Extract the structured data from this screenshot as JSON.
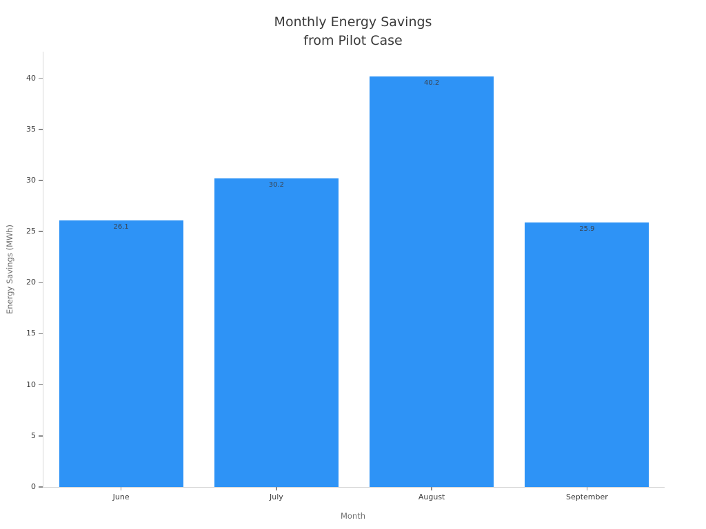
{
  "chart_data": {
    "type": "bar",
    "title_line1": "Monthly Energy Savings",
    "title_line2": "from Pilot Case",
    "categories": [
      "June",
      "July",
      "August",
      "September"
    ],
    "values": [
      26.1,
      30.2,
      40.2,
      25.9
    ],
    "value_labels": [
      "26.1",
      "30.2",
      "40.2",
      "25.9"
    ],
    "xlabel": "Month",
    "ylabel": "Energy Savings (MWh)",
    "yticks": [
      0,
      5,
      10,
      15,
      20,
      25,
      30,
      35,
      40
    ],
    "ytick_labels": [
      "0",
      "5",
      "10",
      "15",
      "20",
      "25",
      "30",
      "35",
      "40"
    ],
    "ylim": [
      0,
      42.6
    ],
    "grid": false,
    "legend": null,
    "bar_color": "#2e93f6",
    "background_color": "#ffffff"
  }
}
